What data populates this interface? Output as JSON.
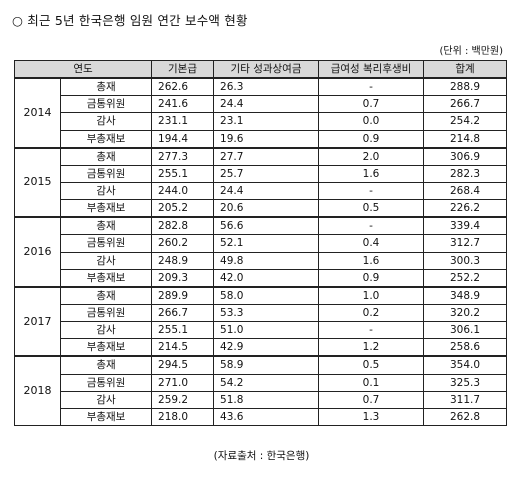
{
  "title": "○ 최근 5년 한국은행 임원 연간 보수액 현황",
  "unit": "(단위 : 백만원)",
  "table": {
    "headers": [
      "연도",
      "기본급",
      "기타 성과상여금",
      "급여성 복리후생비",
      "합계"
    ],
    "groups": [
      {
        "year": "2014",
        "rows": [
          {
            "position": "총재",
            "base": "262.6",
            "bonus": "26.3",
            "welfare": "-",
            "total": "288.9"
          },
          {
            "position": "금통위원",
            "base": "241.6",
            "bonus": "24.4",
            "welfare": "0.7",
            "total": "266.7"
          },
          {
            "position": "감사",
            "base": "231.1",
            "bonus": "23.1",
            "welfare": "0.0",
            "total": "254.2"
          },
          {
            "position": "부총재보",
            "base": "194.4",
            "bonus": "19.6",
            "welfare": "0.9",
            "total": "214.8"
          }
        ]
      },
      {
        "year": "2015",
        "rows": [
          {
            "position": "총재",
            "base": "277.3",
            "bonus": "27.7",
            "welfare": "2.0",
            "total": "306.9"
          },
          {
            "position": "금통위원",
            "base": "255.1",
            "bonus": "25.7",
            "welfare": "1.6",
            "total": "282.3"
          },
          {
            "position": "감사",
            "base": "244.0",
            "bonus": "24.4",
            "welfare": "-",
            "total": "268.4"
          },
          {
            "position": "부총재보",
            "base": "205.2",
            "bonus": "20.6",
            "welfare": "0.5",
            "total": "226.2"
          }
        ]
      },
      {
        "year": "2016",
        "rows": [
          {
            "position": "총재",
            "base": "282.8",
            "bonus": "56.6",
            "welfare": "-",
            "total": "339.4"
          },
          {
            "position": "금통위원",
            "base": "260.2",
            "bonus": "52.1",
            "welfare": "0.4",
            "total": "312.7"
          },
          {
            "position": "감사",
            "base": "248.9",
            "bonus": "49.8",
            "welfare": "1.6",
            "total": "300.3"
          },
          {
            "position": "부총재보",
            "base": "209.3",
            "bonus": "42.0",
            "welfare": "0.9",
            "total": "252.2"
          }
        ]
      },
      {
        "year": "2017",
        "rows": [
          {
            "position": "총재",
            "base": "289.9",
            "bonus": "58.0",
            "welfare": "1.0",
            "total": "348.9"
          },
          {
            "position": "금통위원",
            "base": "266.7",
            "bonus": "53.3",
            "welfare": "0.2",
            "total": "320.2"
          },
          {
            "position": "감사",
            "base": "255.1",
            "bonus": "51.0",
            "welfare": "-",
            "total": "306.1"
          },
          {
            "position": "부총재보",
            "base": "214.5",
            "bonus": "42.9",
            "welfare": "1.2",
            "total": "258.6"
          }
        ]
      },
      {
        "year": "2018",
        "rows": [
          {
            "position": "총재",
            "base": "294.5",
            "bonus": "58.9",
            "welfare": "0.5",
            "total": "354.0"
          },
          {
            "position": "금통위원",
            "base": "271.0",
            "bonus": "54.2",
            "welfare": "0.1",
            "total": "325.3"
          },
          {
            "position": "감사",
            "base": "259.2",
            "bonus": "51.8",
            "welfare": "0.7",
            "total": "311.7"
          },
          {
            "position": "부총재보",
            "base": "218.0",
            "bonus": "43.6",
            "welfare": "1.3",
            "total": "262.8"
          }
        ]
      }
    ]
  },
  "source": "(자료출처 : 한국은행)"
}
